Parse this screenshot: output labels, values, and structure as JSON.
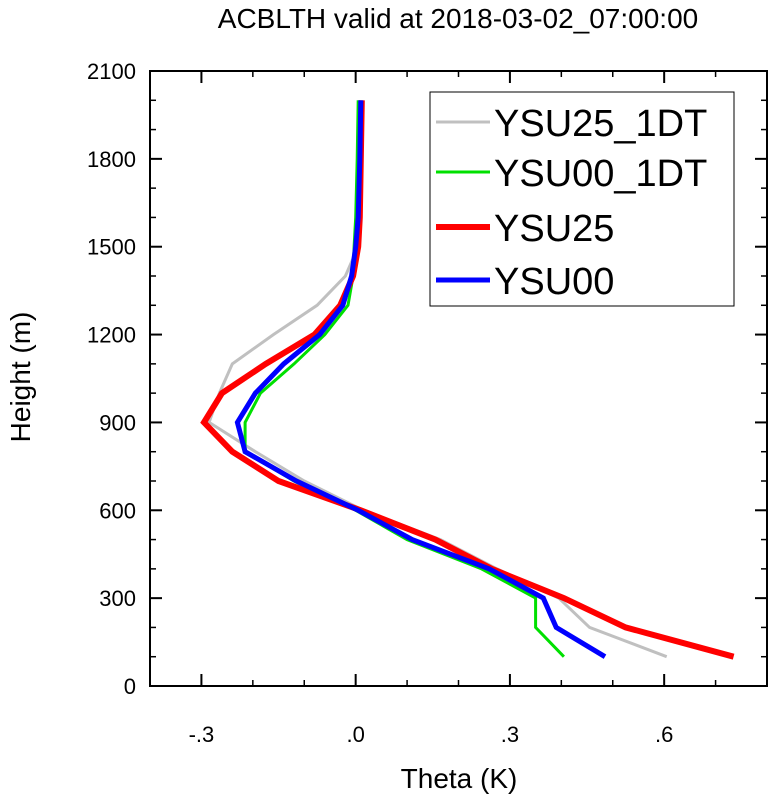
{
  "chart_data": {
    "type": "line",
    "title": "ACBLTH valid at 2018-03-02_07:00:00",
    "xlabel": "Theta (K)",
    "ylabel": "Height (m)",
    "xlim": [
      -0.4,
      0.8
    ],
    "ylim": [
      0,
      2100
    ],
    "xticks": [
      -0.3,
      0.0,
      0.3,
      0.6
    ],
    "xtick_labels": [
      "-.3",
      ".0",
      ".3",
      ".6"
    ],
    "yticks": [
      0,
      300,
      600,
      900,
      1200,
      1500,
      1800,
      2100
    ],
    "ytick_labels": [
      "0",
      "300",
      "600",
      "900",
      "1200",
      "1500",
      "1800",
      "2100"
    ],
    "legend_position": "top-right",
    "series": [
      {
        "name": "YSU25_1DT",
        "color": "#c0c0c0",
        "width": 3,
        "x": [
          0.605,
          0.455,
          0.395,
          0.275,
          0.165,
          0.015,
          -0.1,
          -0.195,
          -0.285,
          -0.265,
          -0.24,
          -0.16,
          -0.075,
          -0.02,
          0.005,
          0.008,
          0.01,
          0.012
        ],
        "y": [
          100,
          200,
          300,
          400,
          500,
          600,
          700,
          800,
          900,
          1000,
          1100,
          1200,
          1300,
          1400,
          1500,
          1600,
          1800,
          2000
        ]
      },
      {
        "name": "YSU00_1DT",
        "color": "#00e000",
        "width": 3,
        "x": [
          0.405,
          0.35,
          0.35,
          0.245,
          0.1,
          0.0,
          -0.12,
          -0.215,
          -0.215,
          -0.185,
          -0.12,
          -0.06,
          -0.015,
          -0.005,
          -0.003,
          0.0,
          0.003,
          0.005
        ],
        "y": [
          100,
          200,
          300,
          400,
          500,
          600,
          700,
          800,
          900,
          1000,
          1100,
          1200,
          1300,
          1400,
          1500,
          1600,
          1800,
          2000
        ]
      },
      {
        "name": "YSU25",
        "color": "#ff0000",
        "width": 6,
        "x": [
          0.735,
          0.525,
          0.405,
          0.265,
          0.155,
          0.01,
          -0.15,
          -0.24,
          -0.295,
          -0.26,
          -0.175,
          -0.08,
          -0.03,
          -0.005,
          0.005,
          0.008,
          0.01,
          0.012
        ],
        "y": [
          100,
          200,
          300,
          400,
          500,
          600,
          700,
          800,
          900,
          1000,
          1100,
          1200,
          1300,
          1400,
          1500,
          1600,
          1800,
          2000
        ]
      },
      {
        "name": "YSU00",
        "color": "#0000ff",
        "width": 5,
        "x": [
          0.485,
          0.39,
          0.365,
          0.26,
          0.11,
          0.005,
          -0.115,
          -0.215,
          -0.23,
          -0.195,
          -0.14,
          -0.07,
          -0.025,
          -0.008,
          0.0,
          0.005,
          0.008,
          0.01
        ],
        "y": [
          100,
          200,
          300,
          400,
          500,
          600,
          700,
          800,
          900,
          1000,
          1100,
          1200,
          1300,
          1400,
          1500,
          1600,
          1800,
          2000
        ]
      }
    ]
  }
}
